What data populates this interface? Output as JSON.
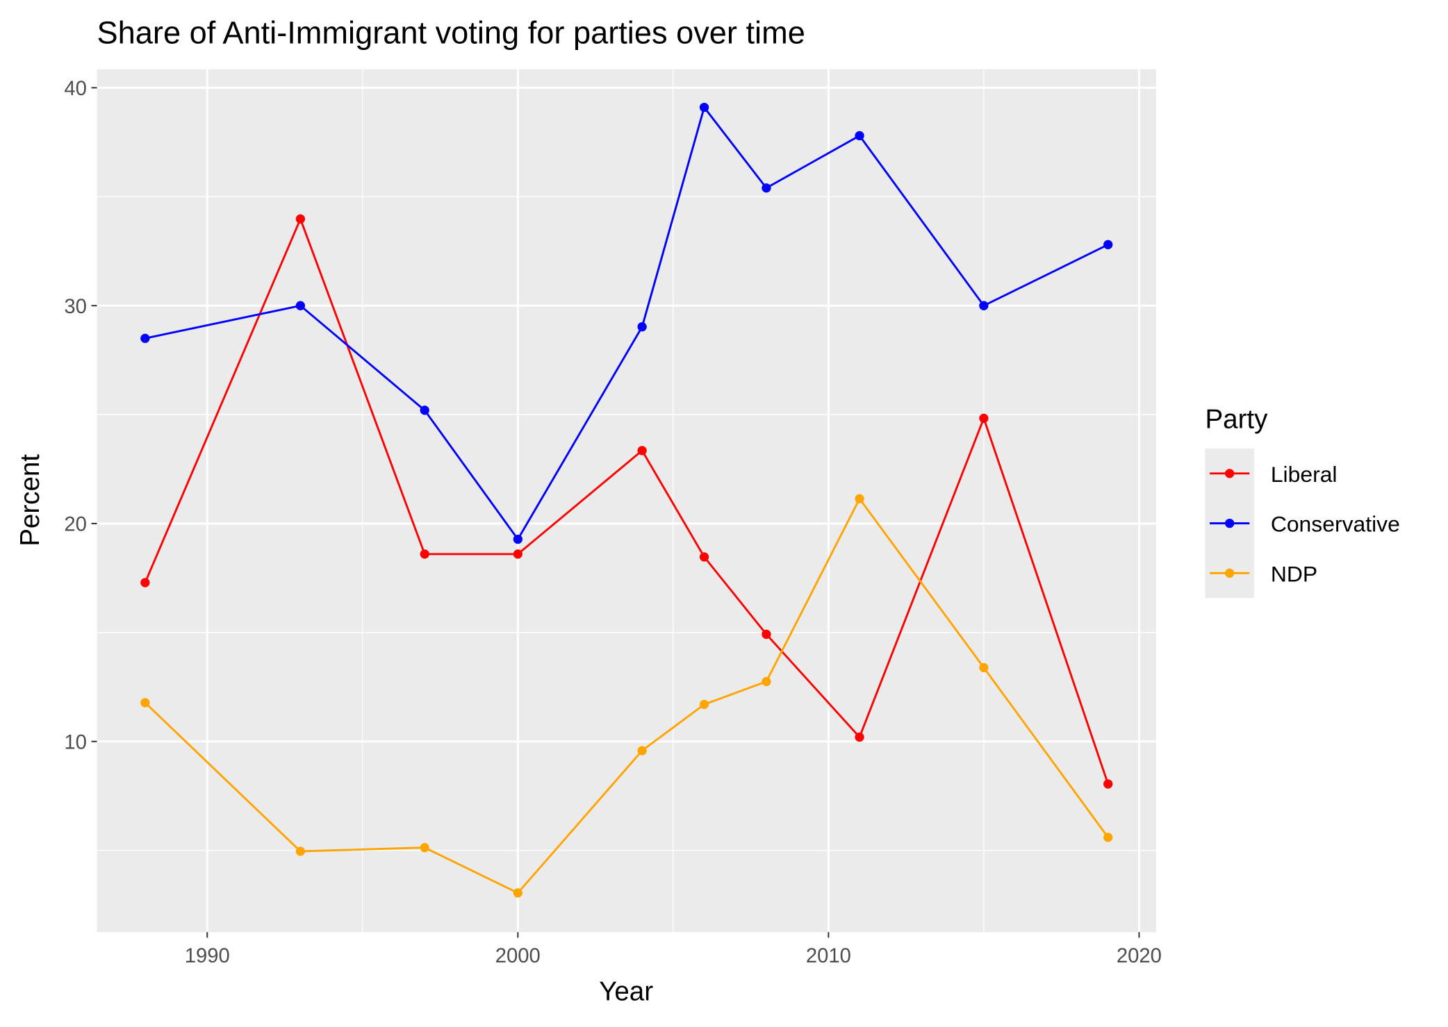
{
  "chart_data": {
    "type": "line",
    "title": "Share of Anti-Immigrant voting for parties over time",
    "x_label": "Year",
    "y_label": "Percent",
    "legend_title": "Party",
    "x": [
      1988,
      1993,
      1997,
      2000,
      2004,
      2006,
      2008,
      2011,
      2015,
      2019
    ],
    "series": [
      {
        "name": "Liberal",
        "color": "#ff0000",
        "values": [
          17.29,
          33.98,
          18.6,
          18.6,
          23.35,
          18.47,
          14.92,
          10.2,
          24.83,
          8.05
        ]
      },
      {
        "name": "Conservative",
        "color": "#0000ff",
        "values": [
          28.5,
          30,
          25.2,
          19.28,
          29.03,
          39.1,
          35.4,
          37.8,
          30,
          32.8
        ]
      },
      {
        "name": "NDP",
        "color": "#ffa500",
        "values": [
          11.78,
          4.96,
          5.13,
          3.05,
          9.58,
          11.7,
          12.75,
          21.14,
          13.39,
          5.6
        ]
      }
    ],
    "xlim": [
      1986.45,
      2020.55
    ],
    "xticks": [
      1990,
      2000,
      2010,
      2020
    ],
    "ylim": [
      1.25,
      40.85
    ],
    "yticks": [
      10,
      20,
      30,
      40
    ],
    "grid": true,
    "minor_grid": true,
    "legend": "right"
  }
}
